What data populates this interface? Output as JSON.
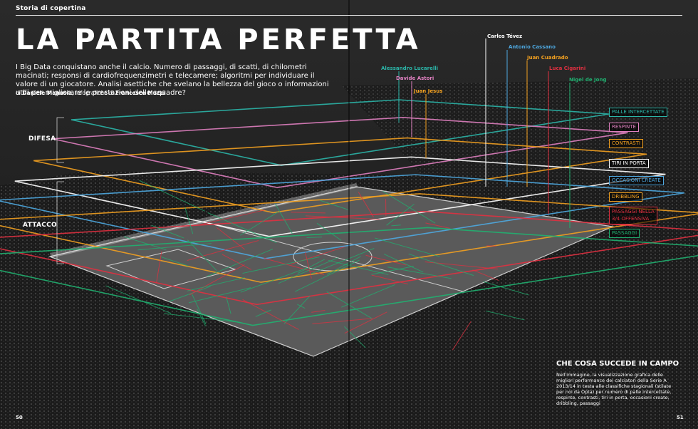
{
  "header": {
    "section": "Storia di copertina",
    "title": "LA PARTITA PERFETTA"
  },
  "intro": "I Big Data conquistano anche il calcio. Numero di passaggi, di scatti, di chilometri macinati; responsi di cardiofrequenzimetri e telecamere; algoritmi per individuare il valore di un giocatore. Analisi asettiche che svelano la bellezza del gioco o informazioni utili per migliorare le prestazioni delle squadre?",
  "byline": {
    "prefix": "di",
    "author": "Daniele Manusia",
    "middle": ", infografiche di",
    "illustrator": "Francesco Muzzi"
  },
  "groups": {
    "defense": "DIFESA",
    "attack": "ATTACCO"
  },
  "players": [
    {
      "name": "Alessandro Lucarelli",
      "color": "#2bb5a8"
    },
    {
      "name": "Davide Astori",
      "color": "#e080c0"
    },
    {
      "name": "Juan Jesus",
      "color": "#f2a020"
    },
    {
      "name": "Carlos Tévez",
      "color": "#ffffff"
    },
    {
      "name": "Antonio Cassano",
      "color": "#4ea8e0"
    },
    {
      "name": "Juan Cuadrado",
      "color": "#f2a020"
    },
    {
      "name": "Luca Cigarini",
      "color": "#e03040"
    },
    {
      "name": "Nigel de Jong",
      "color": "#20b070"
    }
  ],
  "legend": [
    {
      "label": "PALLE INTERCETTATE",
      "color": "#2bb5a8"
    },
    {
      "label": "RESPINTE",
      "color": "#e080c0"
    },
    {
      "label": "CONTRASTI",
      "color": "#f2a020"
    },
    {
      "label": "TIRI IN PORTA",
      "color": "#ffffff"
    },
    {
      "label": "OCCASIONI CREATE",
      "color": "#4ea8e0"
    },
    {
      "label": "DRIBBLING",
      "color": "#f2a020"
    },
    {
      "label": "PASSAGGI NELLA",
      "label2": "3/4 OFFENSIVA",
      "color": "#e03040"
    },
    {
      "label": "PASSAGGI",
      "color": "#20b070"
    }
  ],
  "box": {
    "title": "CHE COSA SUCCEDE IN CAMPO",
    "text": "Nell'immagine, la visualizzazione grafica delle migliori performance dei calciatori della Serie A 2013/14 in testa alle classifiche stagionali (stilate per noi da Opta) per numero di palle intercettate, respinte, contrasti, tiri in porta, occasioni create, dribbling, passaggi"
  },
  "pages": {
    "left": "50",
    "right": "51"
  }
}
